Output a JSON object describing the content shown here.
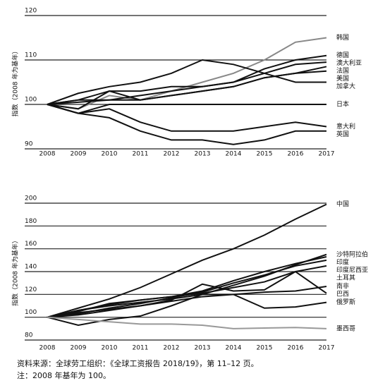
{
  "chart_data": [
    {
      "type": "line",
      "y_label": "指数（2008 年为基年）",
      "categories": [
        "2008",
        "2009",
        "2010",
        "2011",
        "2012",
        "2013",
        "2014",
        "2015",
        "2016",
        "2017"
      ],
      "ylim": [
        90,
        120
      ],
      "yticks": [
        90,
        100,
        110,
        120
      ],
      "grid": true,
      "series": [
        {
          "name": "韩国",
          "color": "#888888",
          "values": [
            100,
            99,
            102,
            101,
            103,
            105,
            107,
            110,
            114,
            115
          ]
        },
        {
          "name": "德国",
          "color": "#111111",
          "values": [
            100,
            101,
            103,
            103,
            104,
            104,
            105,
            108,
            110,
            111
          ]
        },
        {
          "name": "澳大利亚",
          "color": "#111111",
          "values": [
            100,
            101,
            101,
            102,
            103,
            104,
            105,
            107,
            109,
            109.5
          ]
        },
        {
          "name": "法国",
          "color": "#111111",
          "values": [
            100,
            100.5,
            101,
            101,
            102,
            103,
            104,
            106,
            107,
            108.5
          ]
        },
        {
          "name": "美国",
          "color": "#111111",
          "values": [
            100,
            99,
            103,
            101,
            102,
            103,
            104,
            106,
            107,
            107.5
          ]
        },
        {
          "name": "加拿大",
          "color": "#111111",
          "values": [
            100,
            102.5,
            104,
            105,
            107,
            110,
            109,
            107,
            105,
            105
          ]
        },
        {
          "name": "日本",
          "color": "#111111",
          "values": [
            100,
            98,
            100,
            100,
            100,
            100,
            100,
            100,
            100,
            100
          ]
        },
        {
          "name": "意大利",
          "color": "#111111",
          "values": [
            100,
            98,
            99,
            96,
            94,
            94,
            94,
            95,
            96,
            95
          ]
        },
        {
          "name": "英国",
          "color": "#111111",
          "values": [
            100,
            98,
            97,
            94,
            92,
            92,
            91,
            92,
            94,
            94
          ]
        }
      ]
    },
    {
      "type": "line",
      "y_label": "指数（2008 年为基年）",
      "categories": [
        "2008",
        "2009",
        "2010",
        "2011",
        "2012",
        "2013",
        "2014",
        "2015",
        "2016",
        "2017"
      ],
      "ylim": [
        80,
        200
      ],
      "yticks": [
        80,
        100,
        120,
        140,
        160,
        180,
        200
      ],
      "grid": true,
      "series": [
        {
          "name": "中国",
          "color": "#111111",
          "values": [
            100,
            108,
            116,
            126,
            138,
            150,
            160,
            172,
            186,
            199
          ]
        },
        {
          "name": "沙特阿拉伯",
          "color": "#111111",
          "values": [
            100,
            106,
            110,
            113,
            116,
            120,
            128,
            136,
            146,
            155
          ]
        },
        {
          "name": "印度",
          "color": "#111111",
          "values": [
            100,
            105,
            112,
            115,
            118,
            123,
            132,
            140,
            147,
            153
          ]
        },
        {
          "name": "印度尼西亚",
          "color": "#111111",
          "values": [
            100,
            103,
            108,
            112,
            117,
            122,
            130,
            137,
            145,
            150
          ]
        },
        {
          "name": "土耳其",
          "color": "#111111",
          "values": [
            100,
            106,
            111,
            115,
            118,
            121,
            126,
            131,
            140,
            145
          ]
        },
        {
          "name": "南非",
          "color": "#111111",
          "values": [
            100,
            104,
            107,
            110,
            114,
            118,
            120,
            122,
            123,
            127
          ]
        },
        {
          "name": "巴西",
          "color": "#111111",
          "values": [
            100,
            102,
            106,
            110,
            115,
            129,
            123,
            124,
            140,
            121
          ]
        },
        {
          "name": "俄罗斯",
          "color": "#111111",
          "values": [
            100,
            93,
            98,
            101,
            110,
            120,
            120,
            108,
            109,
            113
          ]
        },
        {
          "name": "墨西哥",
          "color": "#999999",
          "values": [
            100,
            98,
            96,
            94,
            94,
            93,
            90,
            90.5,
            91,
            90
          ]
        }
      ]
    }
  ],
  "source": "资料来源：全球劳工组织：《全球工资报告 2018/19》，第 11–12 页。",
  "note": "注：2008 年基年为 100。"
}
